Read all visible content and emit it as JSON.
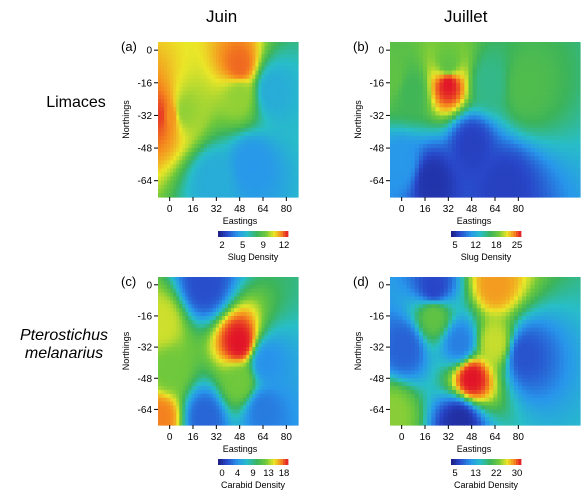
{
  "columns": [
    "Juin",
    "Juillet"
  ],
  "rows": {
    "r1": [
      "Limaces"
    ],
    "r2": [
      "Pterostichus",
      "melanarius"
    ]
  },
  "chart_data": [
    {
      "type": "heatmap",
      "panel": "(a)",
      "xlabel": "Eastings",
      "ylabel": "Northings",
      "x_ticks": [
        "0",
        "16",
        "32",
        "48",
        "64",
        "80"
      ],
      "y_ticks": [
        "0",
        "-16",
        "-32",
        "-48",
        "-64"
      ],
      "xlim": [
        -8,
        88
      ],
      "ylim": [
        -72,
        4
      ],
      "colorbar": {
        "title": "Slug Density",
        "ticks": [
          "2",
          "5",
          "9",
          "12"
        ],
        "range": [
          0,
          14
        ]
      },
      "hotspots": [
        {
          "x": -6,
          "y": -32,
          "value": 13.5
        },
        {
          "x": 0,
          "y": -32,
          "value": 12.5
        },
        {
          "x": 10,
          "y": -30,
          "value": 10
        },
        {
          "x": 48,
          "y": -8,
          "value": 13
        },
        {
          "x": 48,
          "y": -22,
          "value": 10
        },
        {
          "x": 30,
          "y": -64,
          "value": 5
        },
        {
          "x": 56,
          "y": -56,
          "value": 4
        },
        {
          "x": 70,
          "y": -20,
          "value": 5
        }
      ],
      "base_value": 8
    },
    {
      "type": "heatmap",
      "panel": "(b)",
      "xlabel": "Eastings",
      "ylabel": "Northings",
      "x_ticks": [
        "0",
        "16",
        "32",
        "48",
        "64",
        "80"
      ],
      "y_ticks": [
        "0",
        "-16",
        "-32",
        "-48",
        "-64"
      ],
      "xlim": [
        -8,
        88
      ],
      "ylim": [
        -72,
        4
      ],
      "colorbar": {
        "title": "Slug Density",
        "ticks": [
          "5",
          "12",
          "18",
          "25"
        ],
        "range": [
          0,
          28
        ]
      },
      "hotspots": [
        {
          "x": 32,
          "y": -16,
          "value": 28
        },
        {
          "x": 32,
          "y": -8,
          "value": 18
        },
        {
          "x": -6,
          "y": -14,
          "value": 18
        },
        {
          "x": 6,
          "y": -20,
          "value": 16
        },
        {
          "x": 84,
          "y": -18,
          "value": 17
        },
        {
          "x": 60,
          "y": -16,
          "value": 14
        },
        {
          "x": 48,
          "y": -46,
          "value": 3
        },
        {
          "x": 20,
          "y": -64,
          "value": 2
        },
        {
          "x": 70,
          "y": -66,
          "value": 3
        },
        {
          "x": 0,
          "y": -56,
          "value": 8
        }
      ],
      "base_value": 10
    },
    {
      "type": "heatmap",
      "panel": "(c)",
      "xlabel": "Eastings",
      "ylabel": "Northings",
      "x_ticks": [
        "0",
        "16",
        "32",
        "48",
        "64",
        "80"
      ],
      "y_ticks": [
        "0",
        "-16",
        "-32",
        "-48",
        "-64"
      ],
      "xlim": [
        -8,
        88
      ],
      "ylim": [
        -72,
        4
      ],
      "colorbar": {
        "title": "Carabid Density",
        "ticks": [
          "0",
          "4",
          "9",
          "13",
          "18"
        ],
        "range": [
          -2,
          20
        ]
      },
      "hotspots": [
        {
          "x": 48,
          "y": -30,
          "value": 20
        },
        {
          "x": 48,
          "y": -50,
          "value": 13
        },
        {
          "x": -6,
          "y": -20,
          "value": 15
        },
        {
          "x": -6,
          "y": -68,
          "value": 18
        },
        {
          "x": 0,
          "y": -44,
          "value": 13
        },
        {
          "x": 24,
          "y": 0,
          "value": 1
        },
        {
          "x": 24,
          "y": -68,
          "value": 2
        },
        {
          "x": 64,
          "y": -64,
          "value": 3
        },
        {
          "x": 66,
          "y": -40,
          "value": 4
        }
      ],
      "base_value": 8
    },
    {
      "type": "heatmap",
      "panel": "(d)",
      "xlabel": "Eastings",
      "ylabel": "Northings",
      "x_ticks": [
        "0",
        "16",
        "32",
        "48",
        "64",
        "80"
      ],
      "y_ticks": [
        "0",
        "-16",
        "-32",
        "-48",
        "-64"
      ],
      "xlim": [
        -8,
        88
      ],
      "ylim": [
        -72,
        4
      ],
      "colorbar": {
        "title": "Carabid Density",
        "ticks": [
          "5",
          "13",
          "22",
          "30"
        ],
        "range": [
          0,
          34
        ]
      },
      "hotspots": [
        {
          "x": 48,
          "y": -48,
          "value": 34
        },
        {
          "x": 64,
          "y": 0,
          "value": 30
        },
        {
          "x": 64,
          "y": -30,
          "value": 26
        },
        {
          "x": -6,
          "y": -66,
          "value": 24
        },
        {
          "x": 22,
          "y": -16,
          "value": 22
        },
        {
          "x": 22,
          "y": -2,
          "value": 4
        },
        {
          "x": 40,
          "y": -70,
          "value": 2
        },
        {
          "x": 2,
          "y": -32,
          "value": 6
        },
        {
          "x": 84,
          "y": -36,
          "value": 5
        },
        {
          "x": 40,
          "y": -30,
          "value": 8
        }
      ],
      "base_value": 15
    }
  ]
}
